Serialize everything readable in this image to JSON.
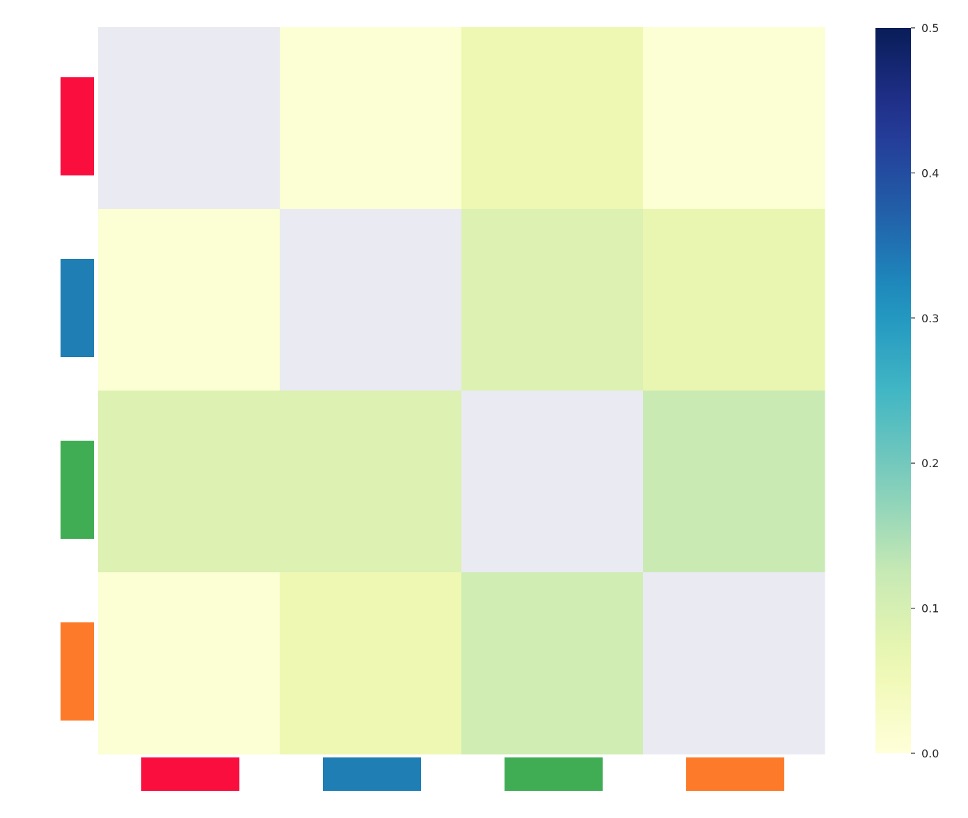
{
  "chart_data": {
    "type": "heatmap",
    "title": "",
    "xlabel": "",
    "ylabel": "",
    "row_colors": [
      "#f90e3e",
      "#1f7eb3",
      "#40ad55",
      "#fd7a2a"
    ],
    "col_colors": [
      "#f90e3e",
      "#1f7eb3",
      "#40ad55",
      "#fd7a2a"
    ],
    "diagonal_color": "#eaeaf2",
    "matrix": [
      [
        null,
        0.01,
        0.06,
        0.01
      ],
      [
        0.01,
        null,
        0.09,
        0.07
      ],
      [
        0.09,
        0.09,
        null,
        0.12
      ],
      [
        0.01,
        0.06,
        0.11,
        null
      ]
    ],
    "colorbar": {
      "vmin": 0.0,
      "vmax": 0.5,
      "colormap": "YlGnBu",
      "ticks": [
        0.0,
        0.1,
        0.2,
        0.3,
        0.4,
        0.5
      ],
      "tick_labels": [
        "0.0",
        "0.1",
        "0.2",
        "0.3",
        "0.4",
        "0.5"
      ]
    }
  }
}
